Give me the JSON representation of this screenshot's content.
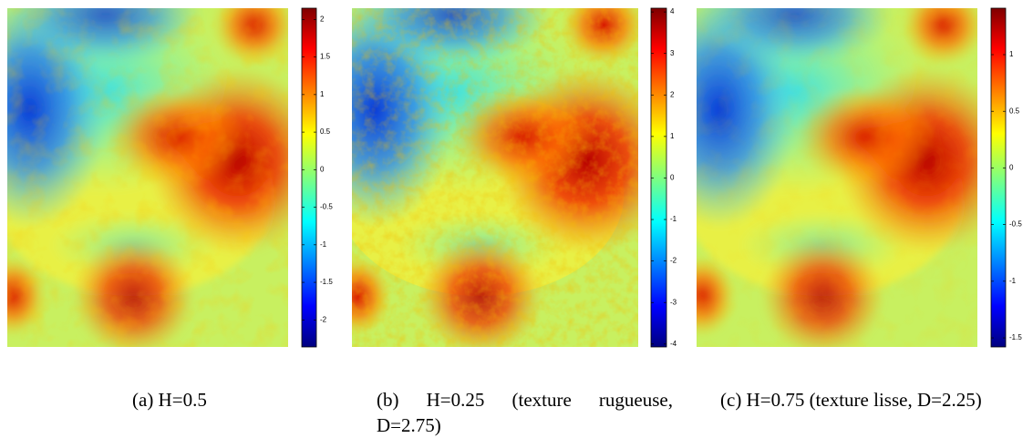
{
  "panels": [
    {
      "caption": "(a) H=0.5",
      "colorbar": {
        "ylim": [
          -2.36,
          2.15
        ],
        "yticks": [
          2,
          1.5,
          1,
          0.5,
          0,
          -0.5,
          -1,
          -1.5,
          -2
        ]
      }
    },
    {
      "caption": "(b) H=0.25 (texture rugueuse, D=2.75)",
      "colorbar": {
        "ylim": [
          -4.07,
          4.09
        ],
        "yticks": [
          4,
          3,
          2,
          1,
          0,
          -1,
          -2,
          -3,
          -4
        ]
      }
    },
    {
      "caption": "(c) H=0.75 (texture lisse, D=2.25)",
      "colorbar": {
        "ylim": [
          -1.58,
          1.41
        ],
        "yticks": [
          1,
          0.5,
          0,
          -0.5,
          -1,
          -1.5
        ]
      }
    }
  ]
}
